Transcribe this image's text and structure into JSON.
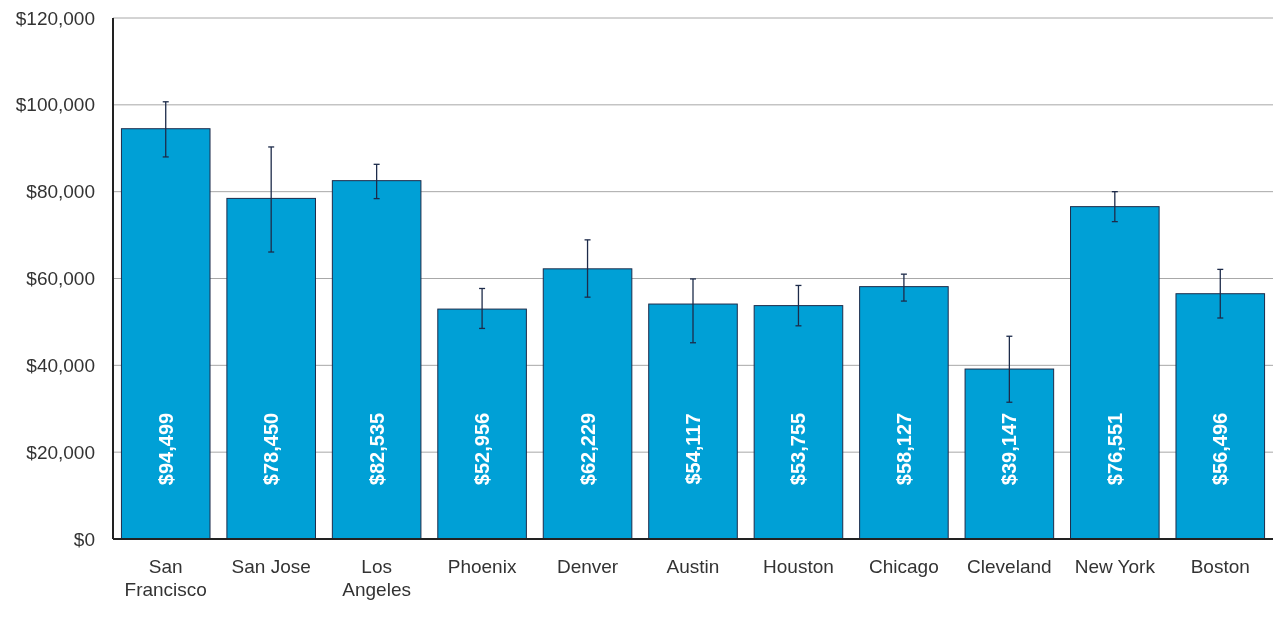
{
  "chart_data": {
    "type": "bar",
    "categories": [
      "San Francisco",
      "San Jose",
      "Los Angeles",
      "Phoenix",
      "Denver",
      "Austin",
      "Houston",
      "Chicago",
      "Cleveland",
      "New York",
      "Boston"
    ],
    "values": [
      94499,
      78450,
      82535,
      52956,
      62229,
      54117,
      53755,
      58127,
      39147,
      76551,
      56496
    ],
    "value_labels": [
      "$94,499",
      "$78,450",
      "$82,535",
      "$52,956",
      "$62,229",
      "$54,117",
      "$53,755",
      "$58,127",
      "$39,147",
      "$76,551",
      "$56,496"
    ],
    "errors": [
      [
        88000,
        100700
      ],
      [
        66100,
        90300
      ],
      [
        78400,
        86300
      ],
      [
        48500,
        57700
      ],
      [
        55700,
        68900
      ],
      [
        45200,
        59900
      ],
      [
        49100,
        58400
      ],
      [
        54800,
        61000
      ],
      [
        31500,
        46700
      ],
      [
        73100,
        80000
      ],
      [
        50900,
        62100
      ]
    ],
    "color": "#00a0d6",
    "ylim": [
      0,
      120000
    ],
    "yticks": [
      {
        "value": 0,
        "label": "$0"
      },
      {
        "value": 20000,
        "label": "$20,000"
      },
      {
        "value": 40000,
        "label": "$40,000"
      },
      {
        "value": 60000,
        "label": "$60,000"
      },
      {
        "value": 80000,
        "label": "$80,000"
      },
      {
        "value": 100000,
        "label": "$100,000"
      },
      {
        "value": 120000,
        "label": "$120,000"
      }
    ],
    "grid": "y"
  }
}
